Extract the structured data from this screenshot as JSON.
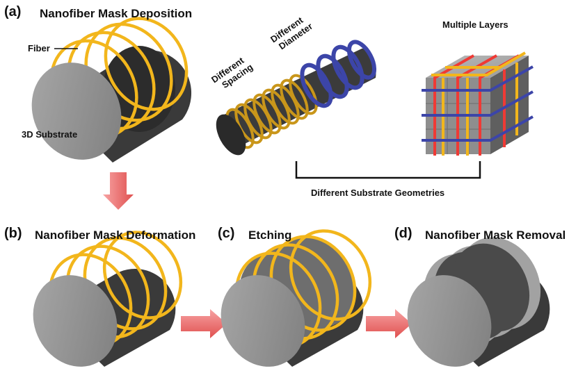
{
  "panels": {
    "a": {
      "letter": "(a)",
      "title": "Nanofiber Mask Deposition"
    },
    "b": {
      "letter": "(b)",
      "title": "Nanofiber Mask Deformation"
    },
    "c": {
      "letter": "(c)",
      "title": "Etching"
    },
    "d": {
      "letter": "(d)",
      "title": "Nanofiber Mask Removal"
    }
  },
  "labels": {
    "fiber": "Fiber",
    "substrate": "3D Substrate",
    "spacing": [
      "Different",
      "Spacing"
    ],
    "diameter": [
      "Different",
      "Diameter"
    ],
    "layers": "Multiple Layers",
    "geometries": "Different Substrate Geometries"
  },
  "colors": {
    "fiber_yellow": "#f2b61c",
    "fiber_blue": "#3c45a8",
    "fiber_red": "#ef3a35",
    "substrate_light": "#8f8f8f",
    "substrate_dark": "#3b3b3b",
    "arrow": "#ee6b6b"
  },
  "icons": [
    "arrow-down-icon",
    "arrow-right-icon",
    "arrow-right-icon"
  ]
}
